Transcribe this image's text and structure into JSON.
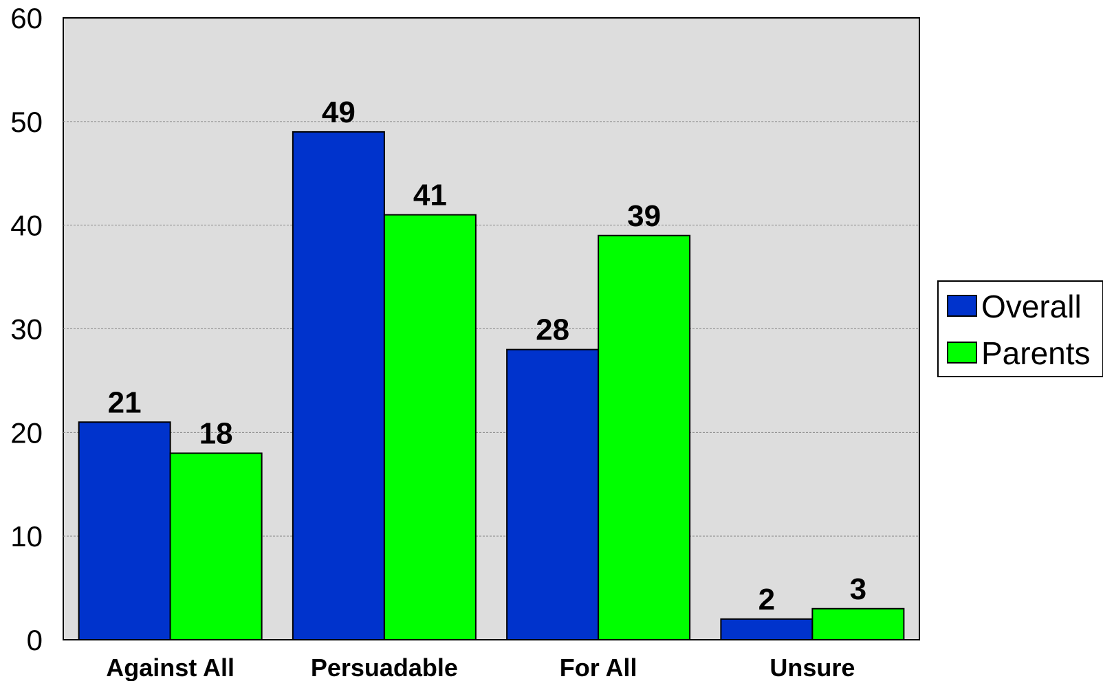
{
  "chart_data": {
    "type": "bar",
    "title": "",
    "xlabel": "",
    "ylabel": "",
    "categories": [
      "Against All",
      "Persuadable",
      "For All",
      "Unsure"
    ],
    "series": [
      {
        "name": "Overall",
        "values": [
          21,
          49,
          28,
          2
        ],
        "color": "#0033CC"
      },
      {
        "name": "Parents",
        "values": [
          18,
          41,
          39,
          3
        ],
        "color": "#00FF00"
      }
    ],
    "ylim": [
      0,
      60
    ],
    "yticks": [
      0,
      10,
      20,
      30,
      40,
      50,
      60
    ],
    "grid": true,
    "legend_position": "right",
    "plot_background": "#DDDDDD",
    "data_labels": true
  }
}
